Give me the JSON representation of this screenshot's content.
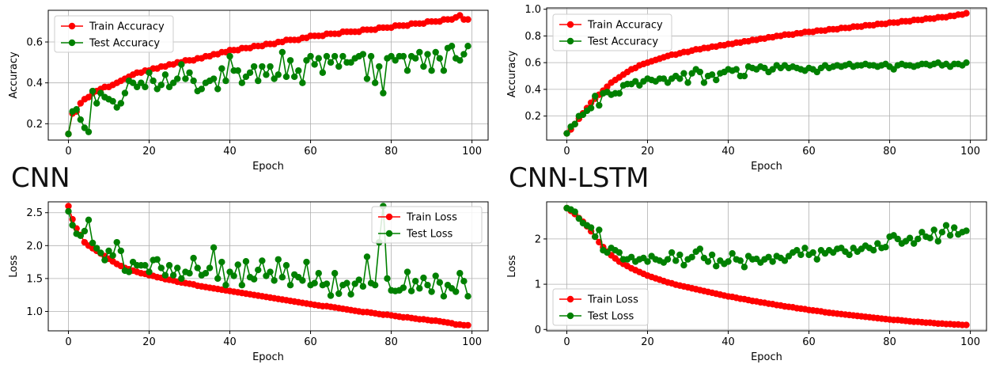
{
  "labels": {
    "cnn": "CNN",
    "cnn_lstm": "CNN-LSTM"
  },
  "colors": {
    "train": "#ff0000",
    "test": "#008000",
    "grid": "#b0b0b0",
    "axis": "#000000"
  },
  "chart_data": [
    {
      "id": "cnn-accuracy",
      "type": "line",
      "xlabel": "Epoch",
      "ylabel": "Accuracy",
      "xlim": [
        -5,
        104
      ],
      "ylim": [
        0.12,
        0.755
      ],
      "xticks": [
        0,
        20,
        40,
        60,
        80,
        100
      ],
      "yticks": [
        0.2,
        0.4,
        0.6
      ],
      "ytick_labels": [
        "0.2",
        "0.4",
        "0.6"
      ],
      "grid": true,
      "legend_position": "upper-left",
      "x_start": 0,
      "series": [
        {
          "name": "Train Accuracy",
          "color": "#ff0000",
          "values": [
            0.15,
            0.25,
            0.26,
            0.3,
            0.32,
            0.33,
            0.35,
            0.36,
            0.37,
            0.38,
            0.38,
            0.39,
            0.4,
            0.41,
            0.42,
            0.43,
            0.44,
            0.45,
            0.45,
            0.46,
            0.46,
            0.47,
            0.47,
            0.48,
            0.48,
            0.49,
            0.49,
            0.5,
            0.5,
            0.51,
            0.51,
            0.51,
            0.52,
            0.52,
            0.53,
            0.53,
            0.54,
            0.54,
            0.55,
            0.55,
            0.56,
            0.56,
            0.56,
            0.57,
            0.57,
            0.57,
            0.58,
            0.58,
            0.58,
            0.59,
            0.59,
            0.59,
            0.6,
            0.6,
            0.61,
            0.61,
            0.61,
            0.61,
            0.62,
            0.62,
            0.63,
            0.63,
            0.63,
            0.63,
            0.64,
            0.64,
            0.64,
            0.64,
            0.65,
            0.65,
            0.65,
            0.65,
            0.65,
            0.66,
            0.66,
            0.66,
            0.66,
            0.67,
            0.67,
            0.67,
            0.67,
            0.68,
            0.68,
            0.68,
            0.68,
            0.69,
            0.69,
            0.69,
            0.69,
            0.7,
            0.7,
            0.7,
            0.7,
            0.71,
            0.71,
            0.71,
            0.72,
            0.73,
            0.71,
            0.71
          ]
        },
        {
          "name": "Test Accuracy",
          "color": "#008000",
          "values": [
            0.15,
            0.26,
            0.27,
            0.22,
            0.18,
            0.16,
            0.36,
            0.3,
            0.35,
            0.33,
            0.32,
            0.31,
            0.28,
            0.3,
            0.35,
            0.41,
            0.4,
            0.38,
            0.4,
            0.38,
            0.45,
            0.41,
            0.37,
            0.39,
            0.44,
            0.38,
            0.4,
            0.42,
            0.49,
            0.42,
            0.45,
            0.41,
            0.36,
            0.37,
            0.4,
            0.41,
            0.42,
            0.37,
            0.47,
            0.41,
            0.53,
            0.46,
            0.46,
            0.4,
            0.43,
            0.45,
            0.48,
            0.41,
            0.48,
            0.44,
            0.48,
            0.42,
            0.44,
            0.55,
            0.43,
            0.51,
            0.43,
            0.46,
            0.4,
            0.51,
            0.53,
            0.49,
            0.52,
            0.45,
            0.53,
            0.5,
            0.53,
            0.48,
            0.53,
            0.5,
            0.5,
            0.52,
            0.53,
            0.54,
            0.42,
            0.53,
            0.4,
            0.48,
            0.35,
            0.52,
            0.53,
            0.51,
            0.53,
            0.53,
            0.46,
            0.53,
            0.52,
            0.55,
            0.48,
            0.54,
            0.46,
            0.55,
            0.52,
            0.46,
            0.57,
            0.58,
            0.52,
            0.51,
            0.54,
            0.58
          ]
        }
      ]
    },
    {
      "id": "cnn-lstm-accuracy",
      "type": "line",
      "xlabel": "Epoch",
      "ylabel": "Accuracy",
      "xlim": [
        -5,
        104
      ],
      "ylim": [
        0.02,
        1.01
      ],
      "xticks": [
        0,
        20,
        40,
        60,
        80,
        100
      ],
      "yticks": [
        0.2,
        0.4,
        0.6,
        0.8,
        1.0
      ],
      "ytick_labels": [
        "0.2",
        "0.4",
        "0.6",
        "0.8",
        "1.0"
      ],
      "grid": true,
      "legend_position": "upper-left",
      "x_start": 0,
      "series": [
        {
          "name": "Train Accuracy",
          "color": "#ff0000",
          "values": [
            0.07,
            0.1,
            0.14,
            0.18,
            0.22,
            0.26,
            0.3,
            0.33,
            0.36,
            0.39,
            0.42,
            0.45,
            0.47,
            0.49,
            0.51,
            0.53,
            0.55,
            0.56,
            0.58,
            0.59,
            0.6,
            0.61,
            0.62,
            0.63,
            0.64,
            0.65,
            0.66,
            0.66,
            0.67,
            0.68,
            0.68,
            0.69,
            0.7,
            0.7,
            0.71,
            0.71,
            0.72,
            0.72,
            0.73,
            0.73,
            0.74,
            0.74,
            0.75,
            0.75,
            0.76,
            0.76,
            0.77,
            0.77,
            0.78,
            0.78,
            0.79,
            0.79,
            0.8,
            0.8,
            0.81,
            0.81,
            0.81,
            0.82,
            0.82,
            0.83,
            0.83,
            0.83,
            0.84,
            0.84,
            0.84,
            0.85,
            0.85,
            0.85,
            0.86,
            0.86,
            0.86,
            0.87,
            0.87,
            0.87,
            0.88,
            0.88,
            0.88,
            0.89,
            0.89,
            0.89,
            0.9,
            0.9,
            0.9,
            0.91,
            0.91,
            0.91,
            0.92,
            0.92,
            0.92,
            0.93,
            0.93,
            0.93,
            0.94,
            0.94,
            0.94,
            0.95,
            0.95,
            0.96,
            0.96,
            0.97
          ]
        },
        {
          "name": "Test Accuracy",
          "color": "#008000",
          "values": [
            0.07,
            0.12,
            0.14,
            0.2,
            0.21,
            0.24,
            0.26,
            0.35,
            0.28,
            0.37,
            0.38,
            0.36,
            0.37,
            0.37,
            0.43,
            0.44,
            0.44,
            0.46,
            0.43,
            0.46,
            0.48,
            0.47,
            0.46,
            0.48,
            0.48,
            0.45,
            0.48,
            0.5,
            0.48,
            0.52,
            0.45,
            0.52,
            0.55,
            0.53,
            0.45,
            0.5,
            0.51,
            0.47,
            0.52,
            0.53,
            0.55,
            0.54,
            0.55,
            0.5,
            0.5,
            0.57,
            0.56,
            0.55,
            0.57,
            0.56,
            0.53,
            0.55,
            0.58,
            0.56,
            0.58,
            0.56,
            0.57,
            0.56,
            0.55,
            0.54,
            0.56,
            0.55,
            0.53,
            0.56,
            0.58,
            0.56,
            0.57,
            0.58,
            0.57,
            0.58,
            0.59,
            0.57,
            0.58,
            0.58,
            0.59,
            0.58,
            0.58,
            0.57,
            0.58,
            0.59,
            0.57,
            0.55,
            0.58,
            0.59,
            0.58,
            0.58,
            0.57,
            0.58,
            0.59,
            0.59,
            0.58,
            0.59,
            0.6,
            0.58,
            0.59,
            0.57,
            0.59,
            0.59,
            0.58,
            0.6
          ]
        }
      ]
    },
    {
      "id": "cnn-loss",
      "type": "line",
      "xlabel": "Epoch",
      "ylabel": "Loss",
      "xlim": [
        -5,
        104
      ],
      "ylim": [
        0.705,
        2.665
      ],
      "xticks": [
        0,
        20,
        40,
        60,
        80,
        100
      ],
      "yticks": [
        1.0,
        1.5,
        2.0,
        2.5
      ],
      "ytick_labels": [
        "1.0",
        "1.5",
        "2.0",
        "2.5"
      ],
      "grid": true,
      "legend_position": "upper-right",
      "x_start": 0,
      "series": [
        {
          "name": "Train Loss",
          "color": "#ff0000",
          "values": [
            2.6,
            2.4,
            2.26,
            2.16,
            2.05,
            2.0,
            1.96,
            1.92,
            1.88,
            1.84,
            1.8,
            1.76,
            1.72,
            1.69,
            1.66,
            1.64,
            1.62,
            1.6,
            1.58,
            1.57,
            1.55,
            1.54,
            1.52,
            1.51,
            1.49,
            1.48,
            1.47,
            1.45,
            1.44,
            1.43,
            1.42,
            1.41,
            1.39,
            1.38,
            1.37,
            1.36,
            1.35,
            1.34,
            1.33,
            1.32,
            1.31,
            1.3,
            1.29,
            1.28,
            1.27,
            1.26,
            1.25,
            1.24,
            1.23,
            1.22,
            1.21,
            1.2,
            1.19,
            1.18,
            1.17,
            1.16,
            1.15,
            1.14,
            1.13,
            1.12,
            1.11,
            1.1,
            1.09,
            1.08,
            1.08,
            1.07,
            1.06,
            1.05,
            1.04,
            1.03,
            1.02,
            1.01,
            1.0,
            0.99,
            0.99,
            0.98,
            0.97,
            0.96,
            0.95,
            0.95,
            0.94,
            0.93,
            0.92,
            0.91,
            0.91,
            0.9,
            0.89,
            0.88,
            0.88,
            0.87,
            0.86,
            0.86,
            0.85,
            0.84,
            0.83,
            0.82,
            0.8,
            0.8,
            0.79,
            0.79
          ]
        },
        {
          "name": "Test Loss",
          "color": "#008000",
          "values": [
            2.52,
            2.31,
            2.18,
            2.15,
            2.22,
            2.39,
            2.04,
            1.96,
            1.89,
            1.78,
            1.92,
            1.85,
            2.05,
            1.92,
            1.62,
            1.6,
            1.75,
            1.7,
            1.7,
            1.7,
            1.6,
            1.78,
            1.79,
            1.66,
            1.55,
            1.7,
            1.55,
            1.66,
            1.5,
            1.6,
            1.58,
            1.81,
            1.66,
            1.55,
            1.58,
            1.66,
            1.97,
            1.5,
            1.75,
            1.4,
            1.6,
            1.54,
            1.71,
            1.4,
            1.76,
            1.52,
            1.49,
            1.63,
            1.77,
            1.54,
            1.6,
            1.47,
            1.79,
            1.52,
            1.7,
            1.4,
            1.56,
            1.52,
            1.47,
            1.75,
            1.4,
            1.43,
            1.58,
            1.4,
            1.42,
            1.24,
            1.58,
            1.27,
            1.4,
            1.43,
            1.26,
            1.42,
            1.48,
            1.38,
            1.83,
            1.43,
            1.4,
            2.05,
            2.6,
            1.5,
            1.32,
            1.31,
            1.32,
            1.36,
            1.6,
            1.31,
            1.46,
            1.35,
            1.51,
            1.4,
            1.3,
            1.54,
            1.44,
            1.23,
            1.4,
            1.35,
            1.3,
            1.58,
            1.46,
            1.23
          ]
        }
      ]
    },
    {
      "id": "cnn-lstm-loss",
      "type": "line",
      "xlabel": "Epoch",
      "ylabel": "Loss",
      "xlim": [
        -5,
        104
      ],
      "ylim": [
        -0.03,
        2.82
      ],
      "xticks": [
        0,
        20,
        40,
        60,
        80,
        100
      ],
      "yticks": [
        0,
        1,
        2
      ],
      "ytick_labels": [
        "0",
        "1",
        "2"
      ],
      "grid": true,
      "legend_position": "lower-left",
      "x_start": 0,
      "series": [
        {
          "name": "Train Loss",
          "color": "#ff0000",
          "values": [
            2.68,
            2.62,
            2.55,
            2.46,
            2.38,
            2.28,
            2.17,
            2.05,
            1.93,
            1.82,
            1.72,
            1.64,
            1.57,
            1.5,
            1.45,
            1.4,
            1.35,
            1.31,
            1.27,
            1.23,
            1.19,
            1.16,
            1.13,
            1.1,
            1.07,
            1.04,
            1.02,
            0.99,
            0.97,
            0.95,
            0.93,
            0.91,
            0.89,
            0.87,
            0.85,
            0.83,
            0.81,
            0.79,
            0.77,
            0.75,
            0.73,
            0.72,
            0.7,
            0.68,
            0.67,
            0.65,
            0.63,
            0.62,
            0.6,
            0.59,
            0.57,
            0.56,
            0.54,
            0.53,
            0.51,
            0.5,
            0.49,
            0.47,
            0.46,
            0.45,
            0.43,
            0.42,
            0.41,
            0.4,
            0.38,
            0.37,
            0.36,
            0.35,
            0.34,
            0.33,
            0.32,
            0.31,
            0.3,
            0.29,
            0.28,
            0.27,
            0.26,
            0.25,
            0.24,
            0.23,
            0.22,
            0.21,
            0.21,
            0.2,
            0.19,
            0.18,
            0.17,
            0.17,
            0.16,
            0.15,
            0.15,
            0.14,
            0.13,
            0.13,
            0.12,
            0.12,
            0.11,
            0.11,
            0.1,
            0.1
          ]
        },
        {
          "name": "Test Loss",
          "color": "#008000",
          "values": [
            2.68,
            2.65,
            2.6,
            2.45,
            2.35,
            2.3,
            2.25,
            2.05,
            2.2,
            1.75,
            1.7,
            1.8,
            1.75,
            1.7,
            1.55,
            1.55,
            1.6,
            1.5,
            1.55,
            1.58,
            1.5,
            1.62,
            1.55,
            1.52,
            1.48,
            1.55,
            1.7,
            1.52,
            1.65,
            1.42,
            1.55,
            1.6,
            1.72,
            1.78,
            1.58,
            1.5,
            1.65,
            1.4,
            1.52,
            1.45,
            1.5,
            1.68,
            1.55,
            1.52,
            1.38,
            1.62,
            1.55,
            1.56,
            1.48,
            1.55,
            1.6,
            1.5,
            1.62,
            1.58,
            1.52,
            1.62,
            1.7,
            1.75,
            1.65,
            1.8,
            1.65,
            1.7,
            1.55,
            1.75,
            1.68,
            1.75,
            1.7,
            1.78,
            1.8,
            1.72,
            1.65,
            1.8,
            1.72,
            1.78,
            1.85,
            1.8,
            1.75,
            1.9,
            1.8,
            1.82,
            2.05,
            2.08,
            2.0,
            1.9,
            1.95,
            2.02,
            1.9,
            2.0,
            2.15,
            2.05,
            2.02,
            2.2,
            1.95,
            2.15,
            2.3,
            2.08,
            2.25,
            2.1,
            2.15,
            2.18
          ]
        }
      ]
    }
  ]
}
